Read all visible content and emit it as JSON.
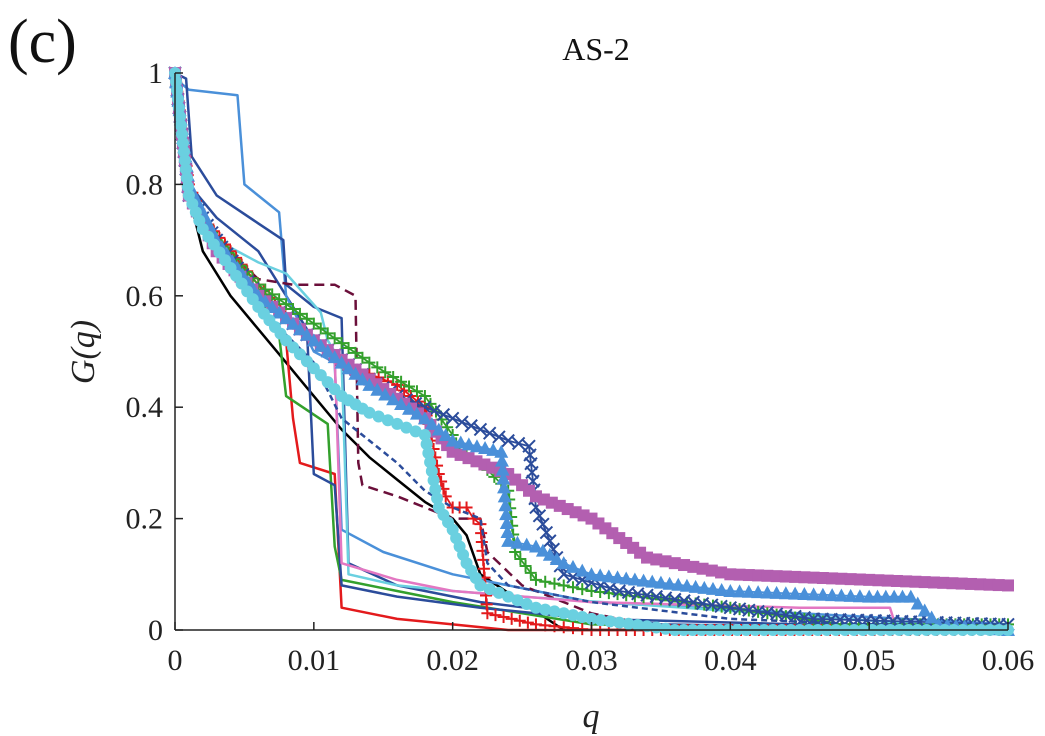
{
  "chart_data": {
    "type": "line",
    "panel_label": "(c)",
    "title": "AS-2",
    "xlabel": "q",
    "ylabel": "G(q)",
    "xlim": [
      0,
      0.06
    ],
    "ylim": [
      0,
      1
    ],
    "xticks": [
      0,
      0.01,
      0.02,
      0.03,
      0.04,
      0.05,
      0.06
    ],
    "xtick_labels": [
      "0",
      "0.01",
      "0.02",
      "0.03",
      "0.04",
      "0.05",
      "0.06"
    ],
    "yticks": [
      0,
      0.2,
      0.4,
      0.6,
      0.8,
      1
    ],
    "ytick_labels": [
      "0",
      "0.2",
      "0.4",
      "0.6",
      "0.8",
      "1"
    ],
    "grid": false,
    "legend": "none",
    "series": [
      {
        "color": "#000000",
        "dash": "",
        "marker": "none",
        "x": [
          0,
          0.001,
          0.002,
          0.004,
          0.006,
          0.008,
          0.01,
          0.012,
          0.014,
          0.016,
          0.018,
          0.02,
          0.021,
          0.022,
          0.025,
          0.028,
          0.035,
          0.06
        ],
        "y": [
          1,
          0.78,
          0.68,
          0.6,
          0.54,
          0.48,
          0.42,
          0.36,
          0.31,
          0.27,
          0.23,
          0.2,
          0.17,
          0.1,
          0.05,
          0.0,
          0.0,
          0.0
        ]
      },
      {
        "color": "#e31a1c",
        "dash": "",
        "marker": "none",
        "x": [
          0,
          0.001,
          0.003,
          0.006,
          0.008,
          0.0085,
          0.009,
          0.0115,
          0.012,
          0.016,
          0.02,
          0.024,
          0.028,
          0.035,
          0.06
        ],
        "y": [
          1,
          0.78,
          0.68,
          0.58,
          0.52,
          0.38,
          0.3,
          0.28,
          0.04,
          0.02,
          0.01,
          0.0,
          0.0,
          0.0,
          0.0
        ]
      },
      {
        "color": "#33a02c",
        "dash": "",
        "marker": "none",
        "x": [
          0,
          0.001,
          0.003,
          0.006,
          0.0075,
          0.008,
          0.011,
          0.0115,
          0.012,
          0.016,
          0.02,
          0.03,
          0.06
        ],
        "y": [
          1,
          0.78,
          0.7,
          0.6,
          0.53,
          0.42,
          0.37,
          0.15,
          0.09,
          0.07,
          0.05,
          0.01,
          0.0
        ]
      },
      {
        "color": "#2b4c9b",
        "dash": "",
        "marker": "none",
        "x": [
          0,
          0.001,
          0.003,
          0.006,
          0.008,
          0.0095,
          0.01,
          0.0115,
          0.012,
          0.016,
          0.022,
          0.03,
          0.045,
          0.06
        ],
        "y": [
          1,
          0.8,
          0.74,
          0.68,
          0.6,
          0.54,
          0.28,
          0.26,
          0.08,
          0.06,
          0.04,
          0.02,
          0.01,
          0.01
        ]
      },
      {
        "color": "#4a90d9",
        "dash": "",
        "marker": "none",
        "x": [
          0,
          0.0005,
          0.001,
          0.0045,
          0.005,
          0.0065,
          0.0075,
          0.008,
          0.01,
          0.0115,
          0.012,
          0.015,
          0.02,
          0.03,
          0.06
        ],
        "y": [
          1,
          0.98,
          0.97,
          0.96,
          0.8,
          0.77,
          0.75,
          0.6,
          0.5,
          0.48,
          0.18,
          0.14,
          0.1,
          0.05,
          0.01
        ]
      },
      {
        "color": "#2b4c9b",
        "dash": "",
        "marker": "none",
        "x": [
          0,
          0.0008,
          0.0012,
          0.003,
          0.006,
          0.0078,
          0.008,
          0.01,
          0.012,
          0.0125,
          0.016,
          0.022,
          0.035,
          0.06
        ],
        "y": [
          1,
          0.99,
          0.85,
          0.78,
          0.73,
          0.7,
          0.62,
          0.58,
          0.56,
          0.12,
          0.08,
          0.05,
          0.01,
          0.0
        ]
      },
      {
        "color": "#6b0f3a",
        "dash": "10,6",
        "marker": "none",
        "x": [
          0,
          0.001,
          0.003,
          0.006,
          0.0085,
          0.009,
          0.0115,
          0.013,
          0.0132,
          0.0135,
          0.016,
          0.02,
          0.022,
          0.0225,
          0.025,
          0.03,
          0.036,
          0.06
        ],
        "y": [
          1,
          0.8,
          0.7,
          0.63,
          0.62,
          0.62,
          0.62,
          0.6,
          0.3,
          0.26,
          0.24,
          0.2,
          0.2,
          0.14,
          0.08,
          0.03,
          0.0,
          0.0
        ]
      },
      {
        "color": "#6ad0e0",
        "dash": "",
        "marker": "none",
        "x": [
          0,
          0.001,
          0.003,
          0.006,
          0.008,
          0.0105,
          0.011,
          0.012,
          0.0125,
          0.016,
          0.02,
          0.025,
          0.06
        ],
        "y": [
          1,
          0.8,
          0.7,
          0.66,
          0.64,
          0.57,
          0.52,
          0.48,
          0.1,
          0.08,
          0.07,
          0.06,
          0.0
        ]
      },
      {
        "color": "#e377c2",
        "dash": "",
        "marker": "none",
        "x": [
          0,
          0.001,
          0.003,
          0.006,
          0.01,
          0.0115,
          0.012,
          0.016,
          0.02,
          0.03,
          0.045,
          0.05,
          0.0515,
          0.052,
          0.06
        ],
        "y": [
          1,
          0.78,
          0.68,
          0.6,
          0.52,
          0.49,
          0.12,
          0.09,
          0.07,
          0.05,
          0.04,
          0.04,
          0.04,
          0.0,
          0.0
        ]
      },
      {
        "color": "#e31a1c",
        "dash": "",
        "marker": "plus",
        "x": [
          0,
          0.001,
          0.002,
          0.004,
          0.006,
          0.008,
          0.01,
          0.012,
          0.014,
          0.016,
          0.018,
          0.019,
          0.0195,
          0.02,
          0.021,
          0.0215,
          0.022,
          0.0225,
          0.026,
          0.03,
          0.035,
          0.06
        ],
        "y": [
          1,
          0.8,
          0.74,
          0.68,
          0.62,
          0.56,
          0.52,
          0.48,
          0.46,
          0.44,
          0.4,
          0.28,
          0.24,
          0.22,
          0.22,
          0.2,
          0.19,
          0.03,
          0.01,
          0.0,
          0.0,
          0.0
        ]
      },
      {
        "color": "#33a02c",
        "dash": "",
        "marker": "plus",
        "x": [
          0,
          0.001,
          0.003,
          0.006,
          0.01,
          0.014,
          0.018,
          0.02,
          0.0205,
          0.022,
          0.024,
          0.0245,
          0.026,
          0.03,
          0.04,
          0.048,
          0.06
        ],
        "y": [
          1,
          0.78,
          0.7,
          0.62,
          0.55,
          0.48,
          0.42,
          0.35,
          0.32,
          0.3,
          0.25,
          0.14,
          0.09,
          0.07,
          0.04,
          0.01,
          0.01
        ]
      },
      {
        "color": "#2b4c9b",
        "dash": "",
        "marker": "cross",
        "x": [
          0,
          0.001,
          0.003,
          0.006,
          0.01,
          0.014,
          0.016,
          0.018,
          0.02,
          0.022,
          0.024,
          0.0255,
          0.026,
          0.028,
          0.032,
          0.04,
          0.046,
          0.06
        ],
        "y": [
          1,
          0.78,
          0.7,
          0.6,
          0.52,
          0.45,
          0.42,
          0.4,
          0.38,
          0.36,
          0.34,
          0.33,
          0.22,
          0.1,
          0.07,
          0.04,
          0.02,
          0.01
        ]
      },
      {
        "color": "#b35fb0",
        "dash": "",
        "marker": "square",
        "x": [
          0,
          0.001,
          0.003,
          0.006,
          0.01,
          0.014,
          0.018,
          0.02,
          0.024,
          0.026,
          0.03,
          0.034,
          0.04,
          0.05,
          0.06
        ],
        "y": [
          1,
          0.78,
          0.68,
          0.6,
          0.52,
          0.45,
          0.38,
          0.32,
          0.28,
          0.24,
          0.2,
          0.13,
          0.1,
          0.09,
          0.08
        ]
      },
      {
        "color": "#4a90d9",
        "dash": "",
        "marker": "triangle",
        "x": [
          0,
          0.001,
          0.003,
          0.006,
          0.01,
          0.014,
          0.018,
          0.02,
          0.0235,
          0.024,
          0.026,
          0.028,
          0.03,
          0.04,
          0.05,
          0.053,
          0.055,
          0.06
        ],
        "y": [
          1,
          0.8,
          0.7,
          0.6,
          0.52,
          0.44,
          0.38,
          0.34,
          0.32,
          0.16,
          0.15,
          0.12,
          0.1,
          0.07,
          0.06,
          0.06,
          0.01,
          0.0
        ]
      },
      {
        "color": "#2b4c9b",
        "dash": "6,4",
        "marker": "none",
        "x": [
          0,
          0.001,
          0.003,
          0.006,
          0.01,
          0.012,
          0.014,
          0.016,
          0.018,
          0.02,
          0.022,
          0.0225,
          0.024,
          0.03,
          0.04,
          0.06
        ],
        "y": [
          1,
          0.78,
          0.68,
          0.58,
          0.48,
          0.38,
          0.34,
          0.3,
          0.25,
          0.22,
          0.2,
          0.12,
          0.08,
          0.05,
          0.02,
          0.0
        ]
      },
      {
        "color": "#6ad0e0",
        "dash": "",
        "marker": "circle",
        "x": [
          0,
          0.001,
          0.002,
          0.004,
          0.006,
          0.008,
          0.01,
          0.012,
          0.014,
          0.016,
          0.018,
          0.019,
          0.02,
          0.021,
          0.022,
          0.024,
          0.026,
          0.03,
          0.036,
          0.045,
          0.06
        ],
        "y": [
          1,
          0.78,
          0.72,
          0.65,
          0.58,
          0.52,
          0.47,
          0.42,
          0.39,
          0.37,
          0.35,
          0.22,
          0.18,
          0.12,
          0.08,
          0.06,
          0.04,
          0.02,
          0.0,
          0.0,
          0.0
        ]
      }
    ]
  }
}
